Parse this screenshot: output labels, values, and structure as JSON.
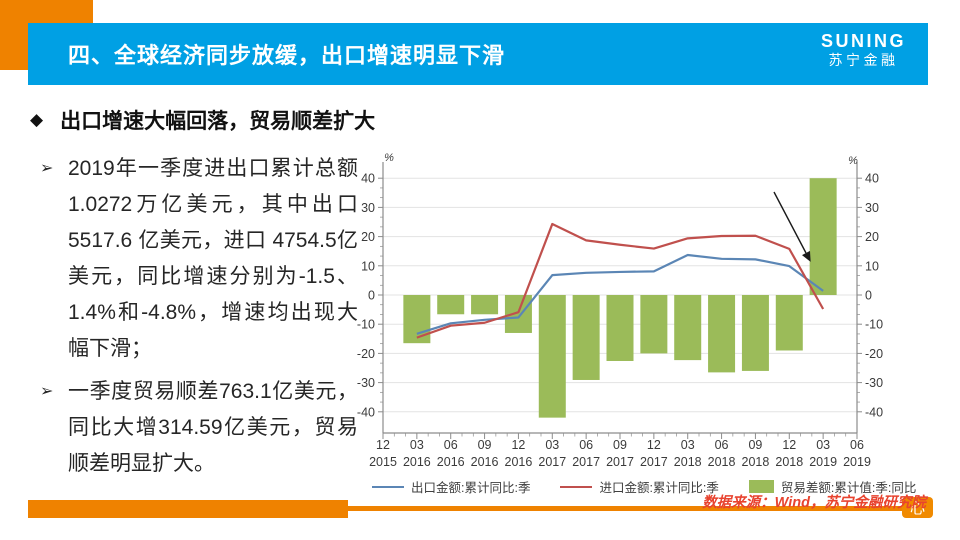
{
  "slide": {
    "title": "四、全球经济同步放缓，出口增速明显下滑",
    "logo": {
      "line1": "SUNING",
      "line2": "苏宁金融"
    },
    "section_heading": "出口增速大幅回落，贸易顺差扩大",
    "bullets": [
      "2019年一季度进出口累计总额1.0272万亿美元，其中出口 5517.6 亿美元，进口 4754.5亿美元，同比增速分别为-1.5、1.4%和-4.8%，增速均出现大幅下滑；",
      "一季度贸易顺差763.1亿美元，同比大增314.59亿美元，贸易顺差明显扩大。"
    ],
    "icons": {
      "bullet_arrow": "➢",
      "diamond": "◆"
    },
    "source_note": "数据来源：Wind，苏宁金融研究院",
    "watermark": "心",
    "colors": {
      "accent_orange": "#EF8200",
      "header_blue": "#00A0E4",
      "source_red": "#E8432F",
      "bar_green": "#9BBB59",
      "export_blue": "#5B86B5",
      "import_red": "#C0504D"
    }
  },
  "chart_data": {
    "type": "bar+line combo, dual mirrored % axes",
    "unit": "%",
    "ylim": [
      -40,
      40
    ],
    "y_major": 10,
    "grid": true,
    "legend_position": "bottom",
    "x_months": [
      "12",
      "03",
      "06",
      "09",
      "12",
      "03",
      "06",
      "09",
      "12",
      "03",
      "06",
      "09",
      "12",
      "03",
      "06"
    ],
    "x_years": [
      "2015",
      "2016",
      "2016",
      "2016",
      "2016",
      "2017",
      "2017",
      "2017",
      "2017",
      "2018",
      "2018",
      "2018",
      "2018",
      "2019",
      "2019"
    ],
    "bar_series": {
      "name": "贸易差额:累计值:季:同比",
      "color": "#9BBB59",
      "values": [
        null,
        -16.5,
        -6.6,
        -6.6,
        -13,
        -42,
        -29.1,
        -22.6,
        -20,
        -22.3,
        -26.5,
        -26,
        -19,
        40,
        null
      ]
    },
    "line_series": [
      {
        "name": "出口金额:累计同比:季",
        "color": "#5B86B5",
        "values": [
          null,
          -13.3,
          -9.7,
          -8.5,
          -7.7,
          6.8,
          7.6,
          7.9,
          8.1,
          13.7,
          12.4,
          12.2,
          9.9,
          1.4,
          null
        ]
      },
      {
        "name": "进口金额:累计同比:季",
        "color": "#C0504D",
        "values": [
          null,
          -14.6,
          -10.5,
          -9.5,
          -5.9,
          24.3,
          18.7,
          17.2,
          15.9,
          19.4,
          20.2,
          20.3,
          15.8,
          -4.8,
          null
        ]
      }
    ],
    "annotation_arrow": {
      "from": [
        419,
        42
      ],
      "to": [
        451,
        103
      ]
    }
  }
}
